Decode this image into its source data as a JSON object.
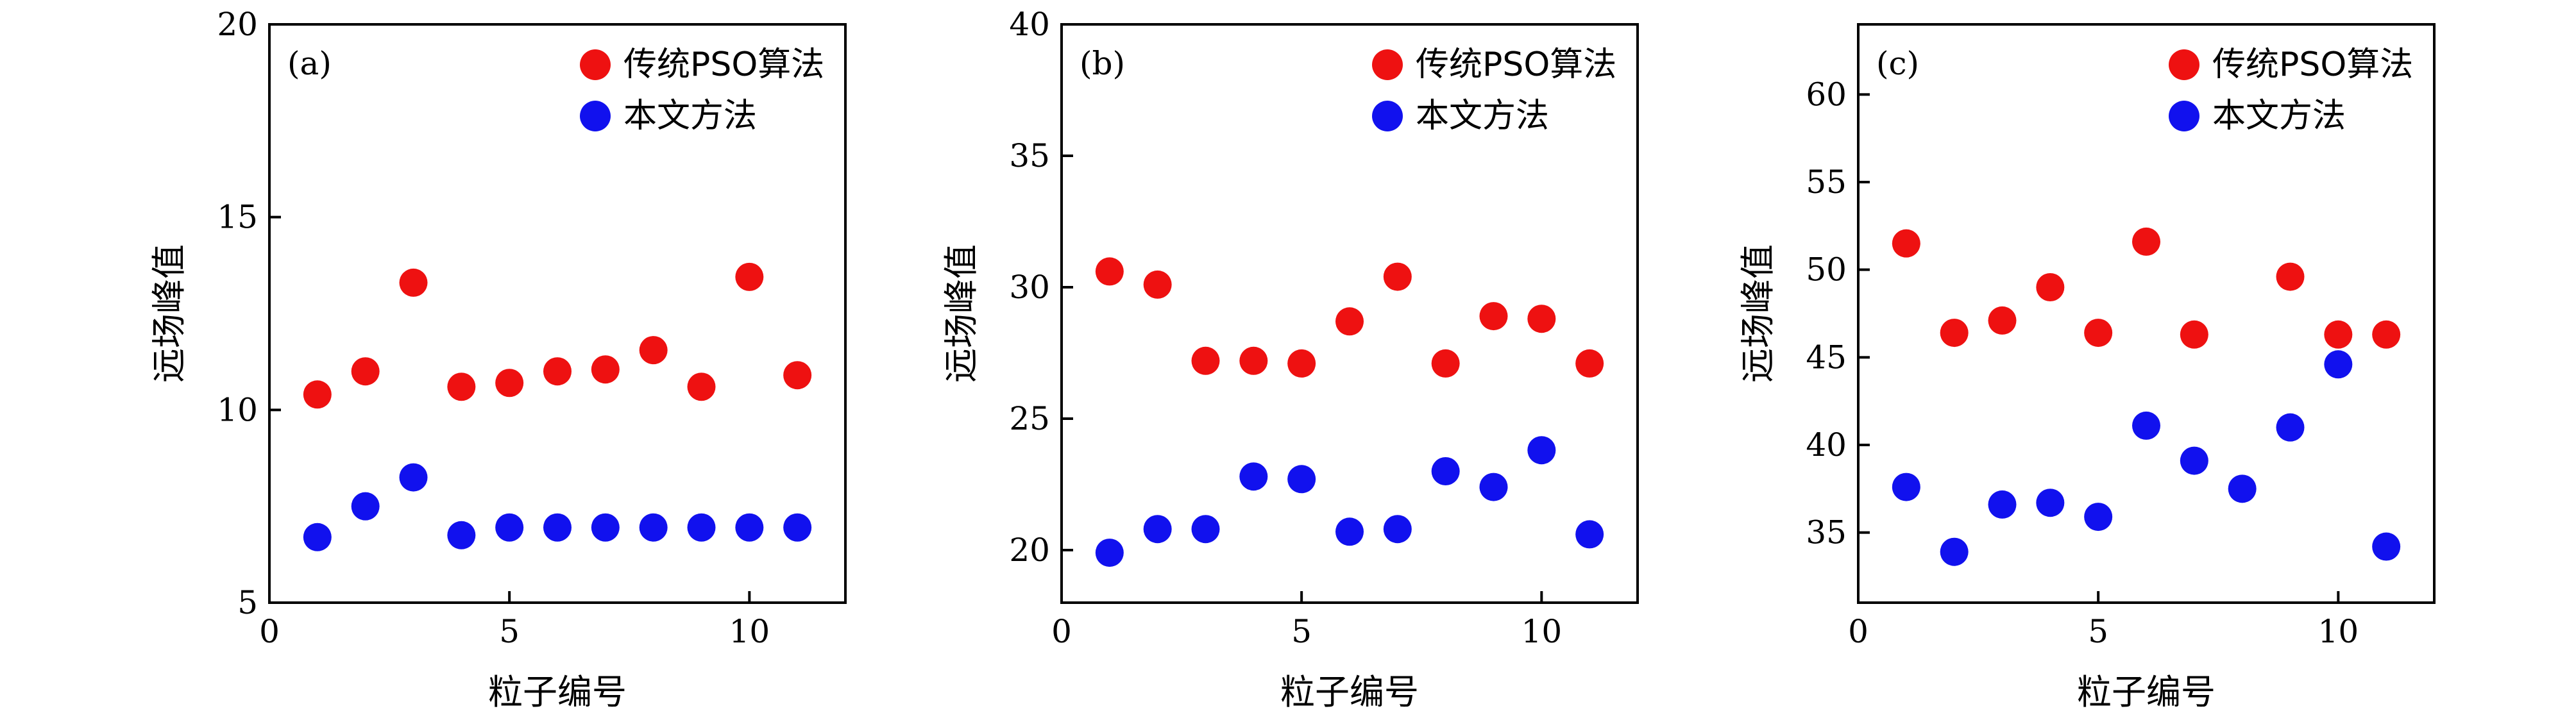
{
  "colors": {
    "series_traditional": "#ee1111",
    "series_proposed": "#1111ee",
    "axis": "#000000"
  },
  "chart_data": [
    {
      "type": "scatter",
      "panel_label": "(a)",
      "xlabel": "粒子编号",
      "ylabel": "远场峰值",
      "xlim": [
        0,
        12
      ],
      "ylim": [
        5,
        20
      ],
      "xticks": [
        0,
        5,
        10
      ],
      "yticks": [
        5,
        10,
        15,
        20
      ],
      "legend_position": "top-right",
      "series": [
        {
          "name": "传统PSO算法",
          "x": [
            1,
            2,
            3,
            4,
            5,
            6,
            7,
            8,
            9,
            10,
            11
          ],
          "values": [
            10.4,
            11.0,
            13.3,
            10.6,
            10.7,
            11.0,
            11.05,
            11.55,
            10.6,
            13.45,
            10.9
          ]
        },
        {
          "name": "本文方法",
          "x": [
            1,
            2,
            3,
            4,
            5,
            6,
            7,
            8,
            9,
            10,
            11
          ],
          "values": [
            6.7,
            7.5,
            8.25,
            6.75,
            6.95,
            6.95,
            6.95,
            6.95,
            6.95,
            6.95,
            6.95
          ]
        }
      ]
    },
    {
      "type": "scatter",
      "panel_label": "(b)",
      "xlabel": "粒子编号",
      "ylabel": "远场峰值",
      "xlim": [
        0,
        12
      ],
      "ylim": [
        18,
        40
      ],
      "xticks": [
        0,
        5,
        10
      ],
      "yticks": [
        20,
        25,
        30,
        35,
        40
      ],
      "legend_position": "top-right",
      "series": [
        {
          "name": "传统PSO算法",
          "x": [
            1,
            2,
            3,
            4,
            5,
            6,
            7,
            8,
            9,
            10,
            11
          ],
          "values": [
            30.6,
            30.1,
            27.2,
            27.2,
            27.1,
            28.7,
            30.4,
            27.1,
            28.9,
            28.8,
            27.1
          ]
        },
        {
          "name": "本文方法",
          "x": [
            1,
            2,
            3,
            4,
            5,
            6,
            7,
            8,
            9,
            10,
            11
          ],
          "values": [
            19.9,
            20.8,
            20.8,
            22.8,
            22.7,
            20.7,
            20.8,
            23.0,
            22.4,
            23.8,
            20.6
          ]
        }
      ]
    },
    {
      "type": "scatter",
      "panel_label": "(c)",
      "xlabel": "粒子编号",
      "ylabel": "远场峰值",
      "xlim": [
        0,
        12
      ],
      "ylim": [
        31,
        64
      ],
      "xticks": [
        0,
        5,
        10
      ],
      "yticks": [
        35,
        40,
        45,
        50,
        55,
        60
      ],
      "legend_position": "top-right",
      "series": [
        {
          "name": "传统PSO算法",
          "x": [
            1,
            2,
            3,
            4,
            5,
            6,
            7,
            8,
            9,
            10,
            11
          ],
          "values": [
            51.5,
            46.4,
            47.1,
            49.0,
            46.4,
            51.6,
            46.3,
            null,
            49.6,
            46.3,
            46.3
          ]
        },
        {
          "name": "本文方法",
          "x": [
            1,
            2,
            3,
            4,
            5,
            6,
            7,
            8,
            9,
            10,
            11
          ],
          "values": [
            37.6,
            33.9,
            36.6,
            36.7,
            35.9,
            41.1,
            39.1,
            37.5,
            41.0,
            44.6,
            34.2
          ]
        }
      ]
    }
  ]
}
